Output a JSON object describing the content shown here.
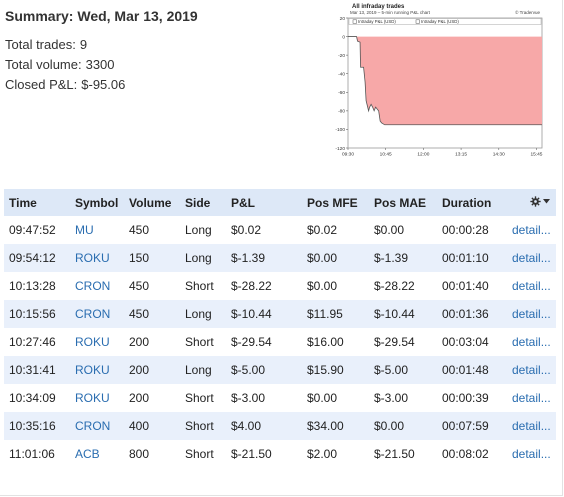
{
  "summary": {
    "title": "Summary: Wed, Mar 13, 2019",
    "total_trades_label": "Total trades:",
    "total_trades": "9",
    "total_volume_label": "Total volume:",
    "total_volume": "3300",
    "closed_pnl_label": "Closed P&L:",
    "closed_pnl": "$-95.06"
  },
  "chart_data": {
    "type": "area",
    "title": "All infraday trades",
    "subtitle": "Mar 13, 2019 – 5-min running P&L chart",
    "brand": "© Tradervue",
    "legend": [
      "Intraday P&L (USD)",
      "Intraday P&L (USD)"
    ],
    "legend_placement": "top",
    "colors": {
      "fill": "#f7a8a8",
      "line": "#555555"
    },
    "xlim": [
      570,
      956
    ],
    "ylim": [
      -120,
      20
    ],
    "yticks": [
      20,
      0,
      -20,
      -40,
      -60,
      -80,
      -100,
      -120
    ],
    "xticks": [
      {
        "label": "09:30",
        "value": 570
      },
      {
        "label": "10:45",
        "value": 645
      },
      {
        "label": "12:00",
        "value": 720
      },
      {
        "label": "13:15",
        "value": 795
      },
      {
        "label": "14:30",
        "value": 870
      },
      {
        "label": "15:45",
        "value": 945
      }
    ],
    "points": [
      [
        570,
        0
      ],
      [
        587,
        0
      ],
      [
        589,
        -5
      ],
      [
        594,
        -6
      ],
      [
        595,
        -33
      ],
      [
        601,
        -33
      ],
      [
        604,
        -49
      ],
      [
        606,
        -69
      ],
      [
        611,
        -80
      ],
      [
        613,
        -76
      ],
      [
        616,
        -73
      ],
      [
        619,
        -76
      ],
      [
        622,
        -80
      ],
      [
        625,
        -76
      ],
      [
        631,
        -80
      ],
      [
        634,
        -91
      ],
      [
        637,
        -93
      ],
      [
        643,
        -95
      ],
      [
        956,
        -95
      ]
    ],
    "grid": false
  },
  "table": {
    "headers": {
      "time": "Time",
      "symbol": "Symbol",
      "volume": "Volume",
      "side": "Side",
      "pnl": "P&L",
      "pos_mfe": "Pos MFE",
      "pos_mae": "Pos MAE",
      "duration": "Duration"
    },
    "settings_icon": "gear-icon",
    "rows": [
      {
        "time": "09:47:52",
        "symbol": "MU",
        "volume": "450",
        "side": "Long",
        "pnl": "$0.02",
        "mfe": "$0.02",
        "mae": "$0.00",
        "duration": "00:00:28",
        "detail": "detail..."
      },
      {
        "time": "09:54:12",
        "symbol": "ROKU",
        "volume": "150",
        "side": "Long",
        "pnl": "$-1.39",
        "mfe": "$0.00",
        "mae": "$-1.39",
        "duration": "00:01:10",
        "detail": "detail..."
      },
      {
        "time": "10:13:28",
        "symbol": "CRON",
        "volume": "450",
        "side": "Short",
        "pnl": "$-28.22",
        "mfe": "$0.00",
        "mae": "$-28.22",
        "duration": "00:01:40",
        "detail": "detail..."
      },
      {
        "time": "10:15:56",
        "symbol": "CRON",
        "volume": "450",
        "side": "Long",
        "pnl": "$-10.44",
        "mfe": "$11.95",
        "mae": "$-10.44",
        "duration": "00:01:36",
        "detail": "detail..."
      },
      {
        "time": "10:27:46",
        "symbol": "ROKU",
        "volume": "200",
        "side": "Short",
        "pnl": "$-29.54",
        "mfe": "$16.00",
        "mae": "$-29.54",
        "duration": "00:03:04",
        "detail": "detail..."
      },
      {
        "time": "10:31:41",
        "symbol": "ROKU",
        "volume": "200",
        "side": "Long",
        "pnl": "$-5.00",
        "mfe": "$15.90",
        "mae": "$-5.00",
        "duration": "00:01:48",
        "detail": "detail..."
      },
      {
        "time": "10:34:09",
        "symbol": "ROKU",
        "volume": "200",
        "side": "Short",
        "pnl": "$-3.00",
        "mfe": "$0.00",
        "mae": "$-3.00",
        "duration": "00:00:39",
        "detail": "detail..."
      },
      {
        "time": "10:35:16",
        "symbol": "CRON",
        "volume": "400",
        "side": "Short",
        "pnl": "$4.00",
        "mfe": "$34.00",
        "mae": "$0.00",
        "duration": "00:07:59",
        "detail": "detail..."
      },
      {
        "time": "11:01:06",
        "symbol": "ACB",
        "volume": "800",
        "side": "Short",
        "pnl": "$-21.50",
        "mfe": "$2.00",
        "mae": "$-21.50",
        "duration": "00:08:02",
        "detail": "detail..."
      }
    ]
  }
}
